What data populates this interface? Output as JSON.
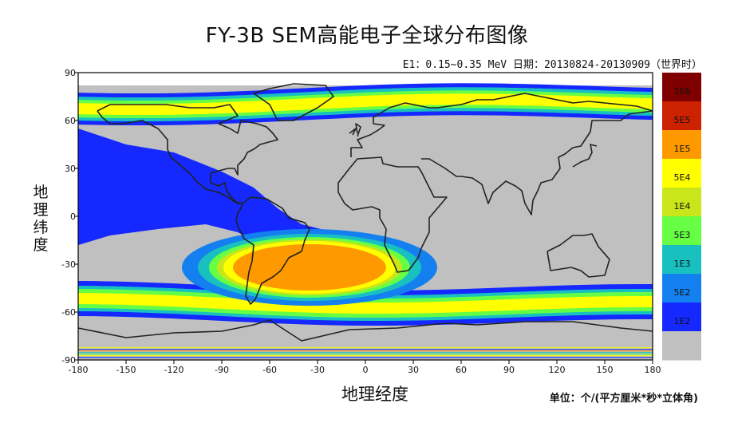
{
  "title": "FY-3B SEM高能电子全球分布图像",
  "subtitle": "E1：0.15~0.35 MeV  日期：20130824-20130909（世界时）",
  "xlabel": "地理经度",
  "ylabel": "地理纬度",
  "unit_label": "单位：个/(平方厘米*秒*立体角)",
  "chart_data": {
    "type": "heatmap",
    "title": "FY-3B SEM高能电子全球分布图像",
    "xlabel": "地理经度",
    "ylabel": "地理纬度",
    "xlim": [
      -180,
      180
    ],
    "ylim": [
      -90,
      90
    ],
    "xticks": [
      -180,
      -150,
      -120,
      -90,
      -60,
      -30,
      0,
      30,
      60,
      90,
      120,
      150,
      180
    ],
    "yticks": [
      90,
      60,
      30,
      0,
      -30,
      -60,
      -90
    ],
    "grid": false,
    "colorbar": {
      "placement": "right",
      "labels": [
        "1E6",
        "5E5",
        "1E5",
        "5E4",
        "1E4",
        "5E3",
        "1E3",
        "5E2",
        "1E2"
      ],
      "colors": [
        "#800000",
        "#cc2200",
        "#ff9900",
        "#ffff00",
        "#c8e619",
        "#66ff44",
        "#19c0c0",
        "#1480f0",
        "#1428ff",
        "#c0c0c0"
      ]
    },
    "features": [
      {
        "name": "South Atlantic Anomaly core",
        "lon": [
          -90,
          30
        ],
        "lat": [
          -50,
          -10
        ],
        "level": "1E5"
      },
      {
        "name": "northern outer radiation belt",
        "lat_center_at_lon_-180": 67,
        "lat_center_at_lon_180": 75,
        "level": "5E4"
      },
      {
        "name": "southern outer radiation belt",
        "lat_center_at_lon_-180": -53,
        "lat_center_at_lon_180": -57,
        "level": "5E4"
      }
    ]
  },
  "colors": {
    "background_fill": "#c0c0c0",
    "coastline": "#222222"
  }
}
